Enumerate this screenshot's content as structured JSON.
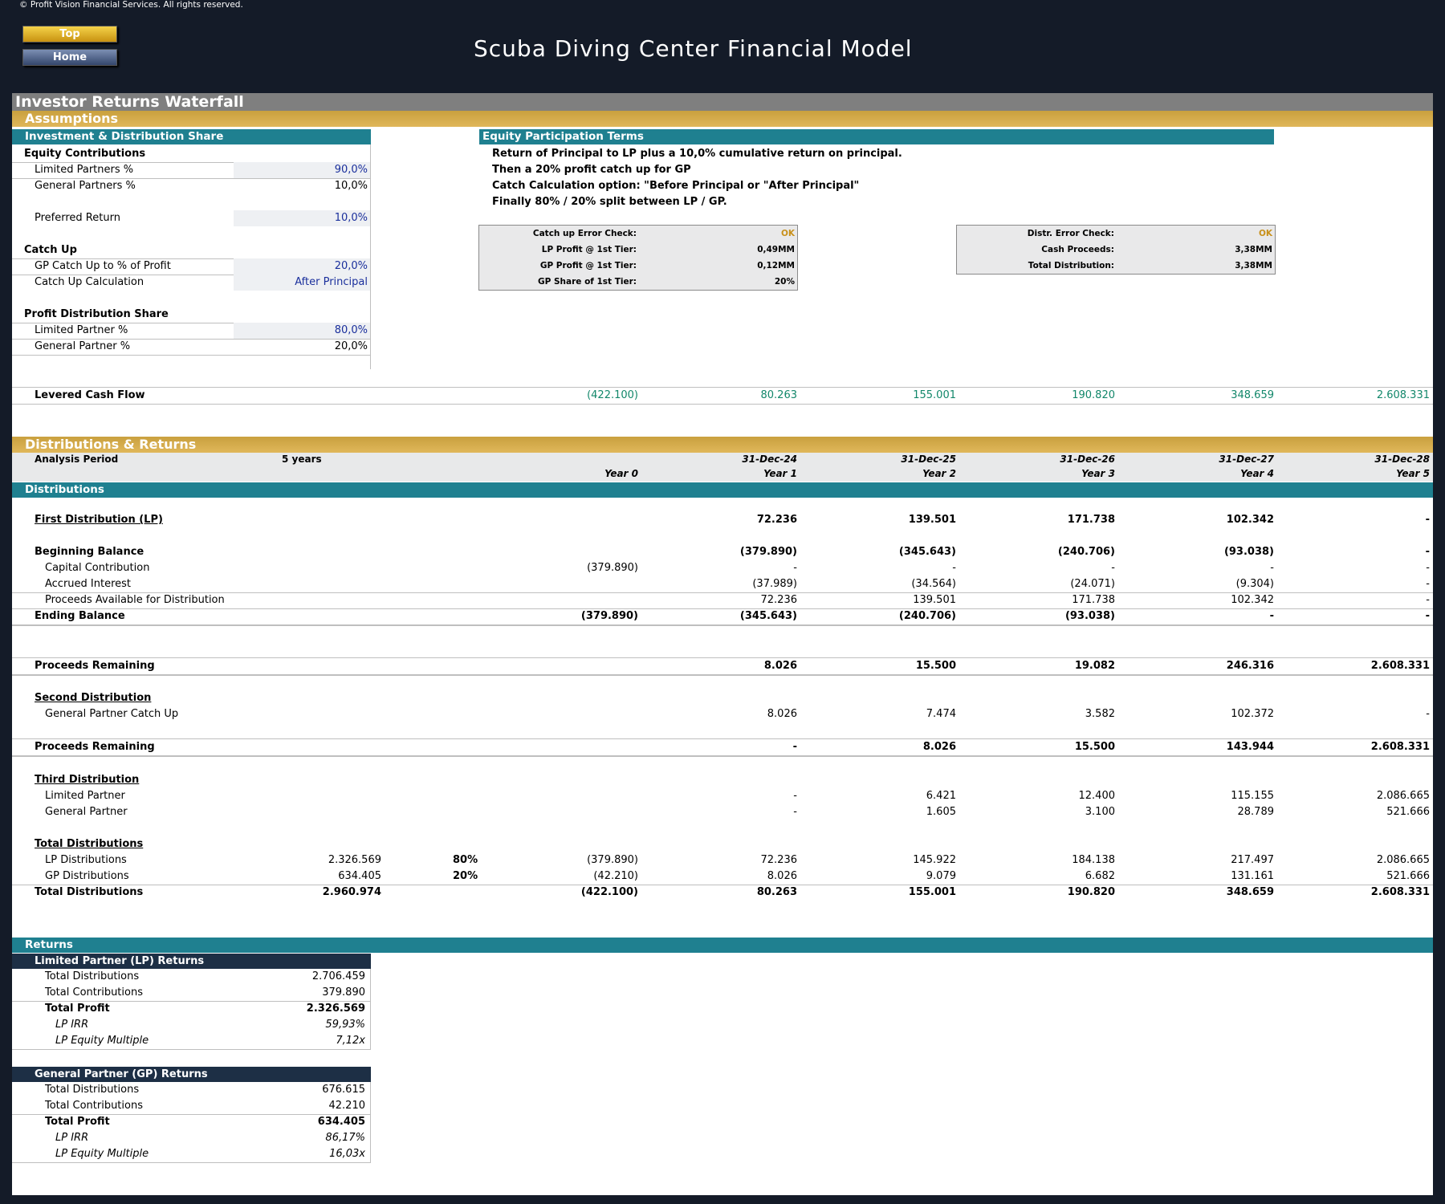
{
  "app": {
    "copyright": "© Profit Vision Financial Services. All rights reserved.",
    "top_label": "Top",
    "home_label": "Home",
    "title": "Scuba Diving Center Financial Model"
  },
  "sheet": {
    "title": "Investor Returns Waterfall",
    "assumptions_header": "Assumptions"
  },
  "inv": {
    "header": "Investment & Distribution Share",
    "equity_title": "Equity Contributions",
    "lp_label": "Limited Partners %",
    "lp_value": "90,0%",
    "gp_label": "General Partners %",
    "gp_value": "10,0%",
    "pref_label": "Preferred Return",
    "pref_value": "10,0%",
    "catch_title": "Catch Up",
    "catch_pct_label": "GP Catch Up to % of Profit",
    "catch_pct_value": "20,0%",
    "catch_calc_label": "Catch Up Calculation",
    "catch_calc_value": "After Principal",
    "profit_title": "Profit Distribution Share",
    "plp_label": "Limited Partner %",
    "plp_value": "80,0%",
    "pgp_label": "General Partner %",
    "pgp_value": "20,0%"
  },
  "terms": {
    "header": "Equity Participation Terms",
    "lines": [
      "Return of Principal to LP plus a 10,0% cumulative return on principal.",
      "Then a 20% profit catch up for GP",
      "Catch Calculation option: \"Before Principal or \"After Principal\"",
      "Finally 80% / 20% split between LP / GP."
    ]
  },
  "check1": [
    {
      "k": "Catch up Error Check:",
      "v": "OK"
    },
    {
      "k": "LP Profit @ 1st Tier:",
      "v": "0,49MM"
    },
    {
      "k": "GP Profit @ 1st Tier:",
      "v": "0,12MM"
    },
    {
      "k": "GP Share of 1st Tier:",
      "v": "20%"
    }
  ],
  "check2": [
    {
      "k": "Distr. Error Check:",
      "v": "OK"
    },
    {
      "k": "Cash Proceeds:",
      "v": "3,38MM"
    },
    {
      "k": "Total Distribution:",
      "v": "3,38MM"
    }
  ],
  "lcf": {
    "label": "Levered Cash Flow",
    "values": [
      "(422.100)",
      "80.263",
      "155.001",
      "190.820",
      "348.659",
      "2.608.331"
    ]
  },
  "dist": {
    "header": "Distributions & Returns",
    "period_label": "Analysis Period",
    "period_value": "5 years",
    "dates": [
      "31-Dec-24",
      "31-Dec-25",
      "31-Dec-26",
      "31-Dec-27",
      "31-Dec-28"
    ],
    "years": [
      "Year 0",
      "Year 1",
      "Year 2",
      "Year 3",
      "Year 4",
      "Year 5"
    ],
    "sub_header": "Distributions"
  },
  "rows": {
    "first": {
      "label": "First Distribution (LP)",
      "v": [
        "",
        "72.236",
        "139.501",
        "171.738",
        "102.342",
        "-"
      ]
    },
    "beg": {
      "label": "Beginning Balance",
      "v": [
        "",
        "(379.890)",
        "(345.643)",
        "(240.706)",
        "(93.038)",
        "-"
      ]
    },
    "cap": {
      "label": "Capital Contribution",
      "v": [
        "(379.890)",
        "-",
        "-",
        "-",
        "-",
        "-"
      ]
    },
    "acc": {
      "label": "Accrued Interest",
      "v": [
        "",
        "(37.989)",
        "(34.564)",
        "(24.071)",
        "(9.304)",
        "-"
      ]
    },
    "proc": {
      "label": "Proceeds Available for Distribution",
      "v": [
        "",
        "72.236",
        "139.501",
        "171.738",
        "102.342",
        "-"
      ]
    },
    "end": {
      "label": "Ending Balance",
      "v": [
        "(379.890)",
        "(345.643)",
        "(240.706)",
        "(93.038)",
        "-",
        "-"
      ]
    },
    "rem1": {
      "label": "Proceeds Remaining",
      "v": [
        "",
        "8.026",
        "15.500",
        "19.082",
        "246.316",
        "2.608.331"
      ]
    },
    "second": {
      "label": "Second Distribution"
    },
    "gpcu": {
      "label": "General Partner Catch Up",
      "v": [
        "",
        "8.026",
        "7.474",
        "3.582",
        "102.372",
        "-"
      ]
    },
    "rem2": {
      "label": "Proceeds Remaining",
      "v": [
        "",
        "-",
        "8.026",
        "15.500",
        "143.944",
        "2.608.331"
      ]
    },
    "third": {
      "label": "Third Distribution"
    },
    "tlp": {
      "label": "Limited Partner",
      "v": [
        "",
        "-",
        "6.421",
        "12.400",
        "115.155",
        "2.086.665"
      ]
    },
    "tgp": {
      "label": "General Partner",
      "v": [
        "",
        "-",
        "1.605",
        "3.100",
        "28.789",
        "521.666"
      ]
    },
    "tot": {
      "label": "Total Distributions"
    },
    "lpd": {
      "label": "LP Distributions",
      "total": "2.326.569",
      "pct": "80%",
      "v": [
        "(379.890)",
        "72.236",
        "145.922",
        "184.138",
        "217.497",
        "2.086.665"
      ]
    },
    "gpd": {
      "label": "GP Distributions",
      "total": "634.405",
      "pct": "20%",
      "v": [
        "(42.210)",
        "8.026",
        "9.079",
        "6.682",
        "131.161",
        "521.666"
      ]
    },
    "totd": {
      "label": "Total Distributions",
      "total": "2.960.974",
      "v": [
        "(422.100)",
        "80.263",
        "155.001",
        "190.820",
        "348.659",
        "2.608.331"
      ]
    }
  },
  "returns": {
    "header": "Returns",
    "lp": {
      "header": "Limited Partner (LP) Returns",
      "rows": [
        {
          "k": "Total Distributions",
          "v": "2.706.459"
        },
        {
          "k": "Total Contributions",
          "v": "379.890"
        },
        {
          "k": "Total Profit",
          "v": "2.326.569"
        },
        {
          "k": "LP IRR",
          "v": "59,93%"
        },
        {
          "k": "LP Equity Multiple",
          "v": "7,12x"
        }
      ]
    },
    "gp": {
      "header": "General Partner (GP) Returns",
      "rows": [
        {
          "k": "Total Distributions",
          "v": "676.615"
        },
        {
          "k": "Total Contributions",
          "v": "42.210"
        },
        {
          "k": "Total Profit",
          "v": "634.405"
        },
        {
          "k": "LP IRR",
          "v": "86,17%"
        },
        {
          "k": "LP Equity Multiple",
          "v": "16,03x"
        }
      ]
    }
  }
}
